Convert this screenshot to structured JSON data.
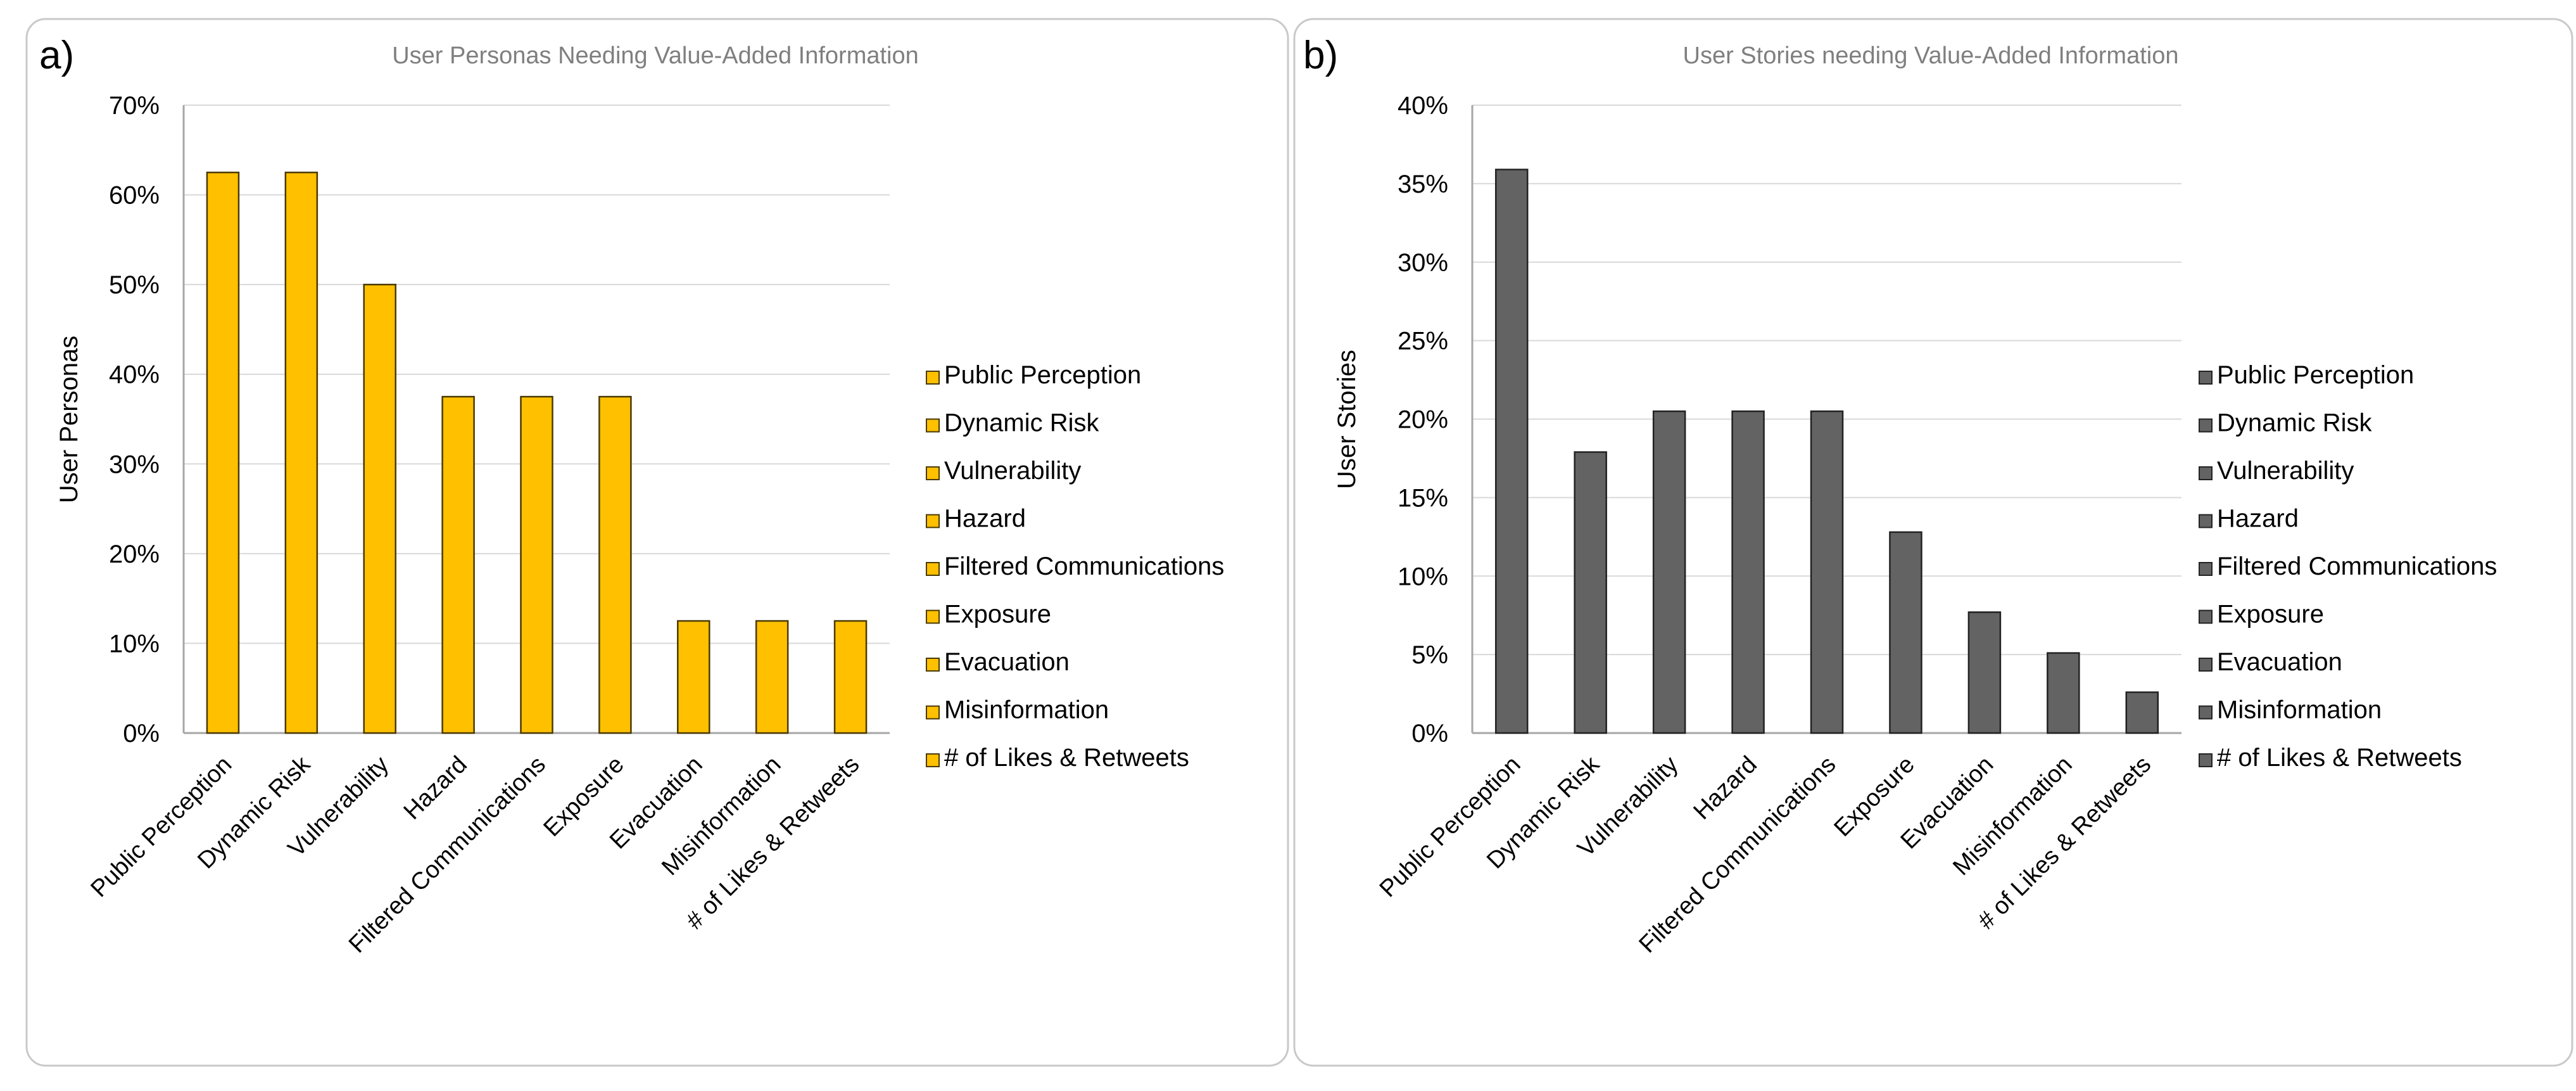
{
  "chart_data": [
    {
      "type": "bar",
      "panel_label": "a)",
      "title": "User Personas Needing Value-Added Information",
      "xlabel": "",
      "ylabel": "User Personas",
      "ylim": [
        0,
        0.7
      ],
      "ytick_values": [
        0,
        0.1,
        0.2,
        0.3,
        0.4,
        0.5,
        0.6,
        0.7
      ],
      "ytick_labels": [
        "0%",
        "10%",
        "20%",
        "30%",
        "40%",
        "50%",
        "60%",
        "70%"
      ],
      "categories": [
        "Public Perception",
        "Dynamic Risk",
        "Vulnerability",
        "Hazard",
        "Filtered Communications",
        "Exposure",
        "Evacuation",
        "Misinformation",
        "# of Likes & Retweets"
      ],
      "values": [
        0.625,
        0.625,
        0.5,
        0.375,
        0.375,
        0.375,
        0.125,
        0.125,
        0.125
      ],
      "legend": [
        "Public Perception",
        "Dynamic Risk",
        "Vulnerability",
        "Hazard",
        "Filtered Communications",
        "Exposure",
        "Evacuation",
        "Misinformation",
        "# of Likes & Retweets"
      ],
      "legend_position": "right",
      "grid": true,
      "bar_color": "#FFC000",
      "bar_edge_color": "#4a3a00"
    },
    {
      "type": "bar",
      "panel_label": "b)",
      "title": "User Stories needing Value-Added Information",
      "xlabel": "",
      "ylabel": "User Stories",
      "ylim": [
        0,
        0.4
      ],
      "ytick_values": [
        0,
        0.05,
        0.1,
        0.15,
        0.2,
        0.25,
        0.3,
        0.35,
        0.4
      ],
      "ytick_labels": [
        "0%",
        "5%",
        "10%",
        "15%",
        "20%",
        "25%",
        "30%",
        "35%",
        "40%"
      ],
      "categories": [
        "Public Perception",
        "Dynamic Risk",
        "Vulnerability",
        "Hazard",
        "Filtered Communications",
        "Exposure",
        "Evacuation",
        "Misinformation",
        "# of Likes & Retweets"
      ],
      "values": [
        0.359,
        0.179,
        0.205,
        0.205,
        0.205,
        0.128,
        0.077,
        0.051,
        0.026
      ],
      "legend": [
        "Public Perception",
        "Dynamic Risk",
        "Vulnerability",
        "Hazard",
        "Filtered Communications",
        "Exposure",
        "Evacuation",
        "Misinformation",
        "# of Likes & Retweets"
      ],
      "legend_position": "right",
      "grid": true,
      "bar_color": "#636363",
      "bar_edge_color": "#222222"
    }
  ]
}
